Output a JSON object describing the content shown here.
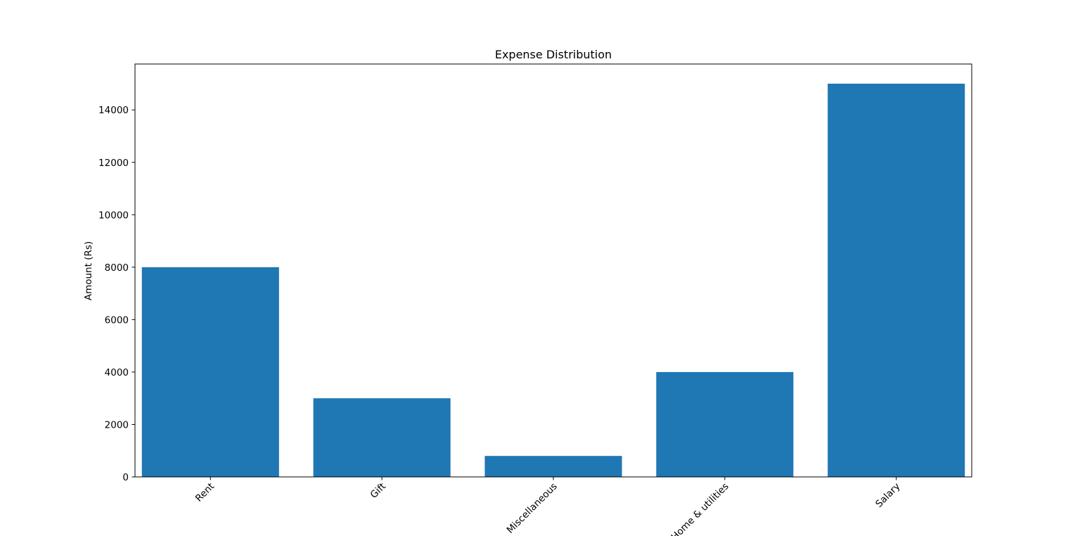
{
  "chart_data": {
    "type": "bar",
    "title": "Expense Distribution",
    "xlabel": "",
    "ylabel": "Amount (Rs)",
    "categories": [
      "Rent",
      "Gift",
      "Miscellaneous",
      "Home & utilities",
      "Salary"
    ],
    "values": [
      8000,
      3000,
      800,
      4000,
      15000
    ],
    "ylim": [
      0,
      15750
    ],
    "yticks": [
      0,
      2000,
      4000,
      6000,
      8000,
      10000,
      12000,
      14000
    ],
    "x_tick_rotation_deg": 45,
    "grid": false,
    "legend": "none",
    "bar_color": "#1f77b4"
  }
}
